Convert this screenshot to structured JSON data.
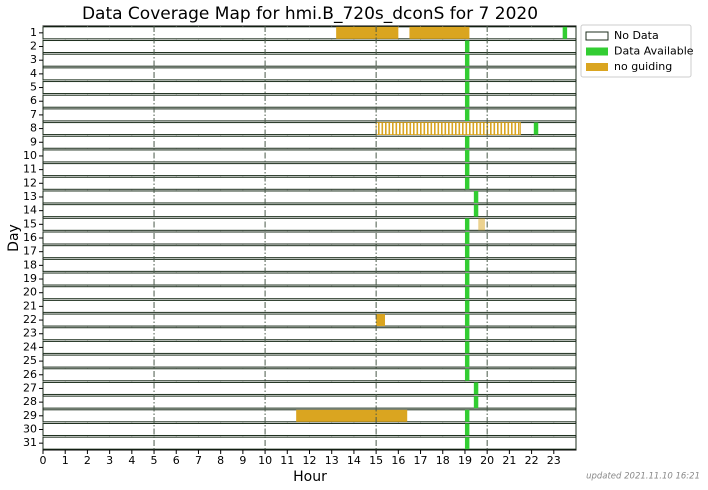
{
  "chart_data": {
    "type": "coverage",
    "title": "Data Coverage Map for hmi.B_720s_dconS for 7 2020",
    "xlabel": "Hour",
    "ylabel": "Day",
    "xlim": [
      0,
      24
    ],
    "xticks": [
      0,
      1,
      2,
      3,
      4,
      5,
      6,
      7,
      8,
      9,
      10,
      11,
      12,
      13,
      14,
      15,
      16,
      17,
      18,
      19,
      20,
      21,
      22,
      23
    ],
    "xlines": [
      5,
      10,
      15,
      20
    ],
    "grid": true,
    "categories": [
      "1",
      "2",
      "3",
      "4",
      "5",
      "6",
      "7",
      "8",
      "9",
      "10",
      "11",
      "12",
      "13",
      "14",
      "15",
      "16",
      "17",
      "18",
      "19",
      "20",
      "21",
      "22",
      "23",
      "24",
      "25",
      "26",
      "27",
      "28",
      "29",
      "30",
      "31"
    ],
    "legend": "upper right",
    "series": [
      {
        "name": "No Data",
        "color": "#ffffff",
        "edgecolor": "#1c2e1c",
        "segments": []
      },
      {
        "name": "Data Available",
        "color": "#32cd32",
        "segments": [
          {
            "day": 1,
            "start": 23.4,
            "end": 23.6
          },
          {
            "day": 2,
            "start": 19.0,
            "end": 19.2
          },
          {
            "day": 3,
            "start": 19.0,
            "end": 19.2
          },
          {
            "day": 4,
            "start": 19.0,
            "end": 19.2
          },
          {
            "day": 5,
            "start": 19.0,
            "end": 19.2
          },
          {
            "day": 6,
            "start": 19.0,
            "end": 19.2
          },
          {
            "day": 7,
            "start": 19.0,
            "end": 19.2
          },
          {
            "day": 8,
            "start": 22.1,
            "end": 22.3
          },
          {
            "day": 9,
            "start": 19.0,
            "end": 19.2
          },
          {
            "day": 10,
            "start": 19.0,
            "end": 19.2
          },
          {
            "day": 11,
            "start": 19.0,
            "end": 19.2
          },
          {
            "day": 12,
            "start": 19.0,
            "end": 19.2
          },
          {
            "day": 13,
            "start": 19.4,
            "end": 19.6
          },
          {
            "day": 14,
            "start": 19.4,
            "end": 19.6
          },
          {
            "day": 15,
            "start": 19.0,
            "end": 19.2
          },
          {
            "day": 16,
            "start": 19.0,
            "end": 19.2
          },
          {
            "day": 17,
            "start": 19.0,
            "end": 19.2
          },
          {
            "day": 18,
            "start": 19.0,
            "end": 19.2
          },
          {
            "day": 19,
            "start": 19.0,
            "end": 19.2
          },
          {
            "day": 20,
            "start": 19.0,
            "end": 19.2
          },
          {
            "day": 21,
            "start": 19.0,
            "end": 19.2
          },
          {
            "day": 22,
            "start": 19.0,
            "end": 19.2
          },
          {
            "day": 23,
            "start": 19.0,
            "end": 19.2
          },
          {
            "day": 24,
            "start": 19.0,
            "end": 19.2
          },
          {
            "day": 25,
            "start": 19.0,
            "end": 19.2
          },
          {
            "day": 26,
            "start": 19.0,
            "end": 19.2
          },
          {
            "day": 27,
            "start": 19.4,
            "end": 19.6
          },
          {
            "day": 28,
            "start": 19.4,
            "end": 19.6
          },
          {
            "day": 29,
            "start": 19.0,
            "end": 19.2
          },
          {
            "day": 30,
            "start": 19.0,
            "end": 19.2
          },
          {
            "day": 31,
            "start": 19.0,
            "end": 19.2
          }
        ]
      },
      {
        "name": "no guiding",
        "color": "#daa520",
        "segments": [
          {
            "day": 1,
            "start": 13.2,
            "end": 16.0
          },
          {
            "day": 1,
            "start": 16.5,
            "end": 19.2
          },
          {
            "day": 8,
            "start": 15.0,
            "end": 21.5,
            "hatched": true
          },
          {
            "day": 15,
            "start": 19.6,
            "end": 19.9,
            "alpha": 0.5
          },
          {
            "day": 22,
            "start": 15.0,
            "end": 15.4
          },
          {
            "day": 29,
            "start": 11.4,
            "end": 16.4
          }
        ]
      }
    ],
    "footnote": "updated 2021.11.10 16:21"
  }
}
